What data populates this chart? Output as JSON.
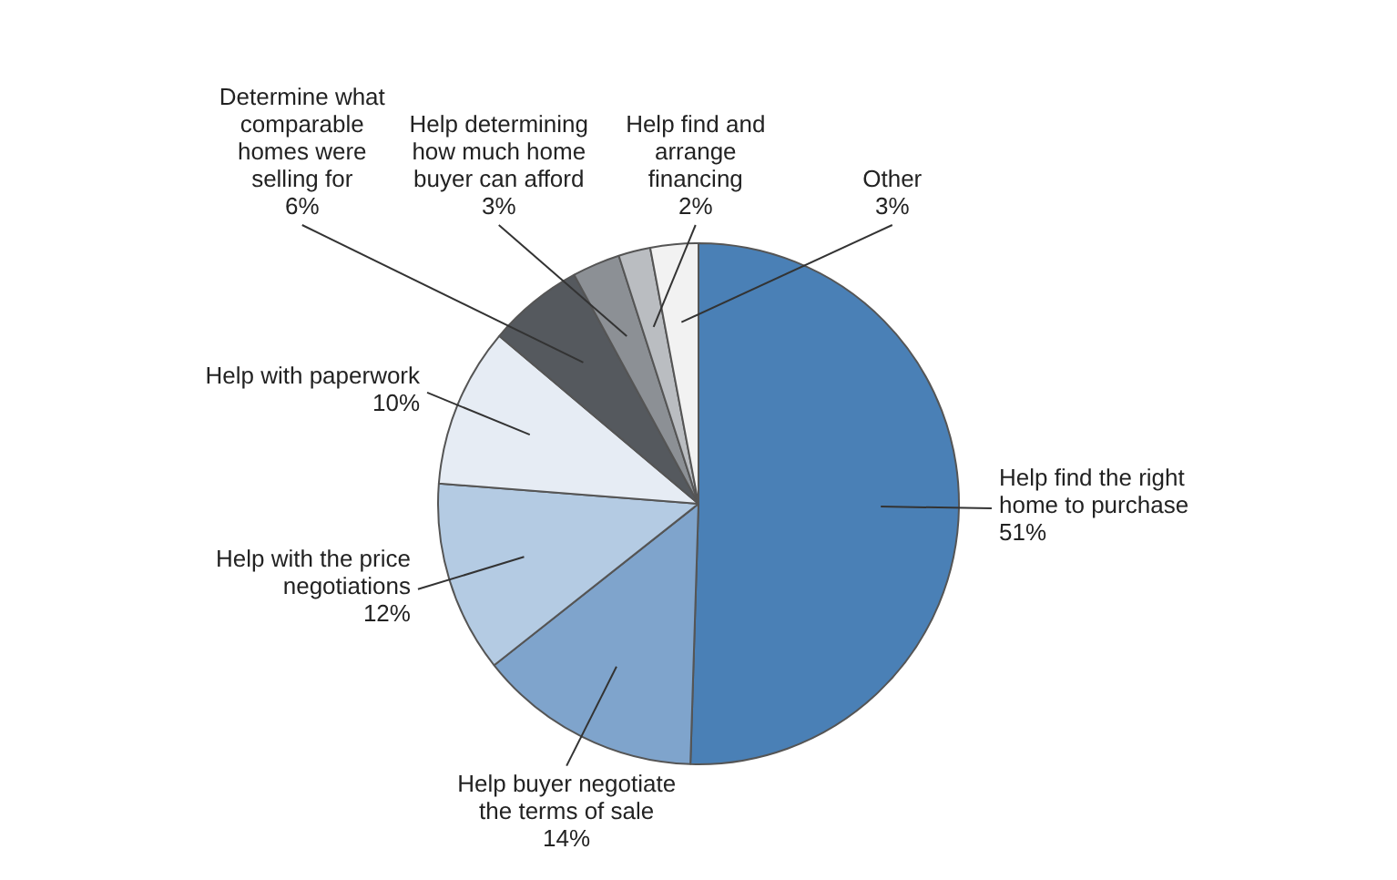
{
  "chart_data": {
    "type": "pie",
    "categories": [
      "Help find the right home to purchase",
      "Help buyer negotiate the terms of sale",
      "Help with the price negotiations",
      "Help with paperwork",
      "Determine what comparable homes were selling for",
      "Help determining how much home buyer can afford",
      "Help find and arrange financing",
      "Other"
    ],
    "values": [
      51,
      14,
      12,
      10,
      6,
      3,
      2,
      3
    ],
    "colors": [
      "#4a80b6",
      "#7fa4cc",
      "#b4cbe3",
      "#e6ecf4",
      "#55595e",
      "#8c9095",
      "#babdc1",
      "#f2f2f2"
    ],
    "value_labels": [
      "51%",
      "14%",
      "12%",
      "10%",
      "6%",
      "3%",
      "2%",
      "3%"
    ],
    "legend": false
  }
}
